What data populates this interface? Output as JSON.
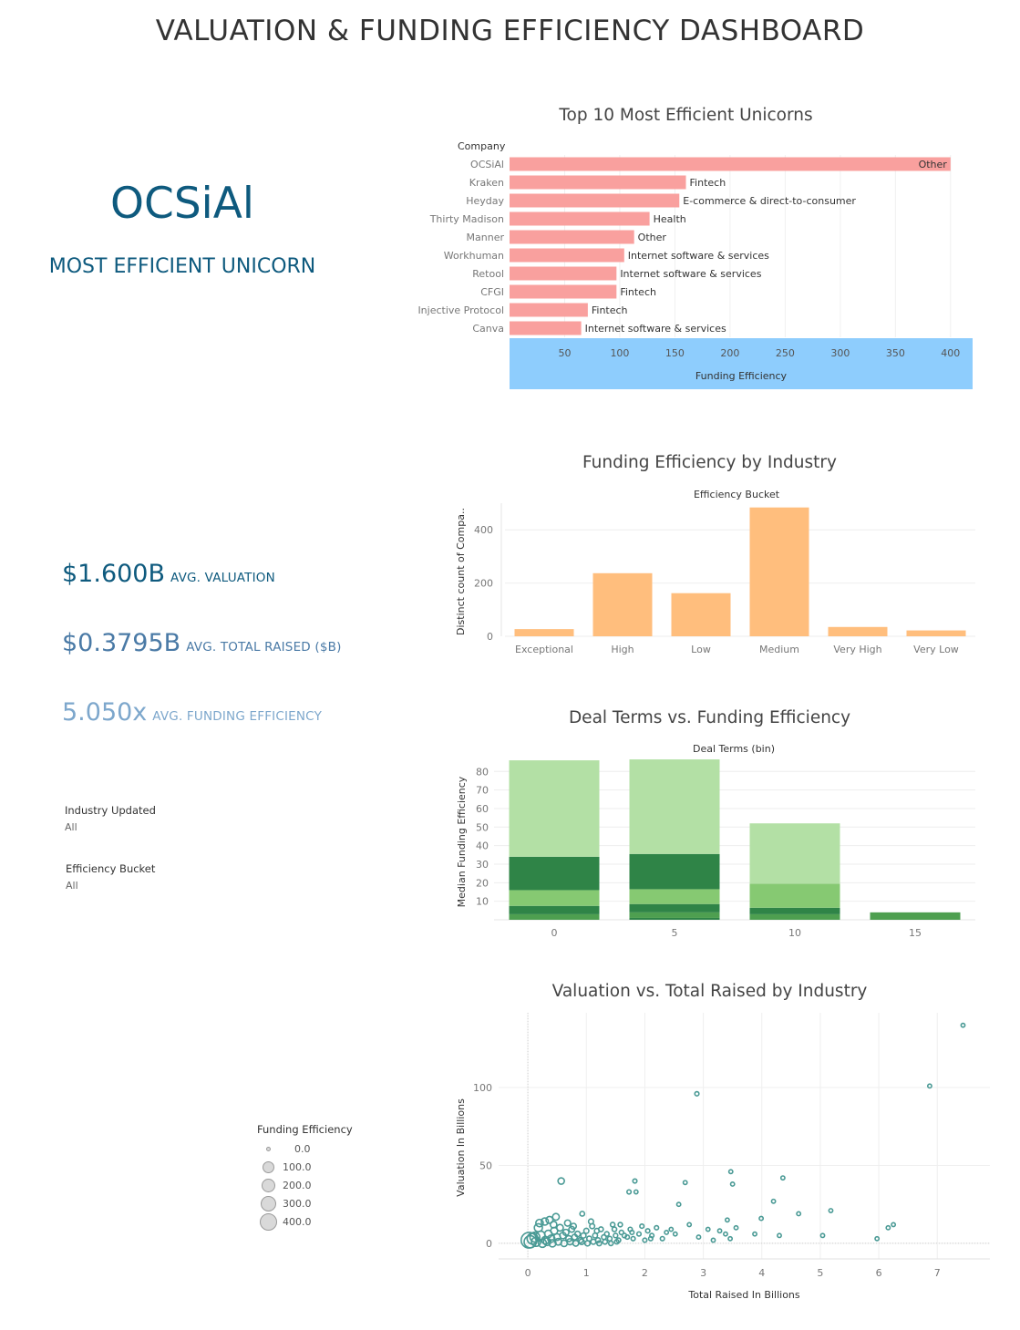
{
  "dashboard": {
    "title": "VALUATION & FUNDING EFFICIENCY DASHBOARD"
  },
  "hero": {
    "company": "OCSiAl",
    "subtitle": "MOST EFFICIENT UNICORN"
  },
  "kpis": {
    "valuation": {
      "value": "$1.600B",
      "label": "AVG. VALUATION"
    },
    "raised": {
      "value": "$0.3795B",
      "label": "AVG. TOTAL RAISED ($B)"
    },
    "efficiency": {
      "value": "5.050x",
      "label": "AVG. FUNDING EFFICIENCY"
    }
  },
  "filters": {
    "industry": {
      "title": "Industry Updated",
      "value": "All"
    },
    "bucket": {
      "title": "Efficiency Bucket",
      "value": "All"
    }
  },
  "legend": {
    "title": "Funding Efficiency",
    "items": [
      "0.0",
      "100.0",
      "200.0",
      "300.0",
      "400.0"
    ]
  },
  "colors": {
    "hero": "#0e5a7e",
    "kpi_valuation": "#0e5a7e",
    "kpi_raised": "#4a7aa6",
    "kpi_efficiency": "#7da7cc",
    "top10_bar": "#f9a09e",
    "top10_axis_band": "#8ecdfd",
    "bucket_bar": "#ffbe7d",
    "deal_light": "#b3e0a5",
    "deal_mid": "#86c972",
    "deal_dark": "#2f8447",
    "deal_med": "#4e9f50",
    "scatter": "#4a9a95"
  },
  "chart_data": [
    {
      "type": "bar",
      "orientation": "horizontal",
      "title": "Top 10 Most Efficient Unicorns",
      "row_header": "Company",
      "xlabel": "Funding Efficiency",
      "xlim": [
        0,
        420
      ],
      "xticks": [
        50,
        100,
        150,
        200,
        250,
        300,
        350,
        400
      ],
      "categories": [
        "OCSiAl",
        "Kraken",
        "Heyday",
        "Thirty Madison",
        "Manner",
        "Workhuman",
        "Retool",
        "CFGI",
        "Injective Protocol",
        "Canva"
      ],
      "values": [
        400,
        160,
        154,
        127,
        113,
        104,
        97,
        97,
        71,
        65
      ],
      "labels": [
        "Other",
        "Fintech",
        "E-commerce & direct-to-consumer",
        "Health",
        "Other",
        "Internet software & services",
        "Internet software & services",
        "Fintech",
        "Fintech",
        "Internet software & services"
      ]
    },
    {
      "type": "bar",
      "title": "Funding Efficiency by Industry",
      "column_header": "Efficiency Bucket",
      "ylabel": "Distinct count of Compa..",
      "ylim": [
        0,
        500
      ],
      "yticks": [
        0,
        200,
        400
      ],
      "categories": [
        "Exceptional",
        "High",
        "Low",
        "Medium",
        "Very High",
        "Very Low"
      ],
      "values": [
        27,
        237,
        162,
        484,
        35,
        22
      ]
    },
    {
      "type": "bar",
      "stacked": true,
      "title": "Deal Terms vs. Funding Efficiency",
      "column_header": "Deal Terms (bin)",
      "ylabel": "Median Funding Efficiency",
      "ylim": [
        0,
        88
      ],
      "yticks": [
        10,
        20,
        30,
        40,
        50,
        60,
        70,
        80
      ],
      "categories": [
        "0",
        "5",
        "10",
        "15"
      ],
      "segments": [
        [
          {
            "value": 3,
            "color": "#4e9f50"
          },
          {
            "value": 4.5,
            "color": "#2f8447"
          },
          {
            "value": 8.5,
            "color": "#86c972"
          },
          {
            "value": 18,
            "color": "#2f8447"
          },
          {
            "value": 52,
            "color": "#b3e0a5"
          }
        ],
        [
          {
            "value": 1,
            "color": "#2f8447"
          },
          {
            "value": 3,
            "color": "#4e9f50"
          },
          {
            "value": 4.5,
            "color": "#2f8447"
          },
          {
            "value": 8,
            "color": "#86c972"
          },
          {
            "value": 19,
            "color": "#2f8447"
          },
          {
            "value": 51,
            "color": "#b3e0a5"
          }
        ],
        [
          {
            "value": 3,
            "color": "#4e9f50"
          },
          {
            "value": 3.5,
            "color": "#2f8447"
          },
          {
            "value": 13,
            "color": "#86c972"
          },
          {
            "value": 32.5,
            "color": "#b3e0a5"
          }
        ],
        [
          {
            "value": 4,
            "color": "#4e9f50"
          }
        ]
      ]
    },
    {
      "type": "scatter",
      "title": "Valuation vs. Total Raised by Industry",
      "xlabel": "Total Raised In Billions",
      "ylabel": "Valuation In Billions",
      "xlim": [
        -0.5,
        7.9
      ],
      "ylim": [
        -10,
        148
      ],
      "xticks": [
        0,
        1,
        2,
        3,
        4,
        5,
        6,
        7
      ],
      "yticks": [
        0,
        50,
        100
      ],
      "size_field": "Funding Efficiency",
      "points": [
        [
          7.44,
          140,
          1
        ],
        [
          6.87,
          101,
          1
        ],
        [
          2.89,
          96,
          2
        ],
        [
          3.47,
          46,
          1
        ],
        [
          4.36,
          42,
          1
        ],
        [
          1.83,
          40,
          2
        ],
        [
          0.57,
          40,
          25
        ],
        [
          2.69,
          39,
          1
        ],
        [
          3.5,
          38,
          1
        ],
        [
          1.73,
          33,
          2
        ],
        [
          1.85,
          33,
          1
        ],
        [
          2.58,
          25,
          1
        ],
        [
          4.2,
          27,
          1
        ],
        [
          4.63,
          19,
          1
        ],
        [
          5.18,
          21,
          1
        ],
        [
          3.99,
          16,
          1
        ],
        [
          3.41,
          15,
          1
        ],
        [
          0.93,
          19,
          5
        ],
        [
          0.29,
          14,
          40
        ],
        [
          0.48,
          17,
          30
        ],
        [
          0.18,
          10,
          60
        ],
        [
          0.02,
          2,
          400
        ],
        [
          0.08,
          3,
          150
        ],
        [
          0.12,
          4,
          110
        ],
        [
          0.22,
          5,
          80
        ],
        [
          0.3,
          2,
          50
        ],
        [
          0.35,
          6,
          45
        ],
        [
          0.4,
          3,
          40
        ],
        [
          0.45,
          8,
          35
        ],
        [
          0.5,
          4,
          30
        ],
        [
          0.55,
          10,
          28
        ],
        [
          0.6,
          5,
          25
        ],
        [
          0.65,
          7,
          20
        ],
        [
          0.7,
          3,
          18
        ],
        [
          0.75,
          9,
          16
        ],
        [
          0.8,
          4,
          14
        ],
        [
          0.85,
          6,
          12
        ],
        [
          0.9,
          2,
          10
        ],
        [
          0.95,
          5,
          9
        ],
        [
          1.0,
          8,
          8
        ],
        [
          1.05,
          3,
          7
        ],
        [
          1.1,
          11,
          7
        ],
        [
          1.15,
          5,
          6
        ],
        [
          1.2,
          2,
          6
        ],
        [
          1.25,
          9,
          5
        ],
        [
          1.3,
          4,
          5
        ],
        [
          1.35,
          6,
          4
        ],
        [
          1.4,
          3,
          4
        ],
        [
          1.45,
          12,
          4
        ],
        [
          1.5,
          5,
          3
        ],
        [
          1.55,
          2,
          3
        ],
        [
          1.6,
          7,
          3
        ],
        [
          1.7,
          4,
          2
        ],
        [
          1.75,
          9,
          2
        ],
        [
          1.8,
          3,
          2
        ],
        [
          1.9,
          6,
          2
        ],
        [
          1.95,
          11,
          2
        ],
        [
          2.0,
          2,
          2
        ],
        [
          2.05,
          8,
          2
        ],
        [
          2.12,
          5,
          2
        ],
        [
          2.2,
          10,
          2
        ],
        [
          2.3,
          3,
          2
        ],
        [
          2.45,
          9,
          1
        ],
        [
          2.52,
          6,
          1
        ],
        [
          2.76,
          12,
          1
        ],
        [
          2.92,
          4,
          1
        ],
        [
          3.08,
          9,
          1
        ],
        [
          3.17,
          2,
          1
        ],
        [
          3.28,
          8,
          1
        ],
        [
          3.38,
          6,
          1
        ],
        [
          3.46,
          3,
          1
        ],
        [
          3.56,
          10,
          1
        ],
        [
          3.88,
          6,
          1
        ],
        [
          4.3,
          5,
          1
        ],
        [
          5.04,
          5,
          1
        ],
        [
          5.97,
          3,
          1
        ],
        [
          6.16,
          10,
          1
        ],
        [
          6.25,
          12,
          1
        ],
        [
          2.37,
          7,
          1
        ],
        [
          0.04,
          1,
          200
        ],
        [
          0.14,
          1,
          90
        ],
        [
          0.25,
          0,
          60
        ],
        [
          0.33,
          1,
          45
        ],
        [
          0.42,
          0,
          40
        ],
        [
          0.52,
          1,
          30
        ],
        [
          0.62,
          0,
          25
        ],
        [
          0.72,
          1,
          20
        ],
        [
          0.82,
          0,
          15
        ],
        [
          0.92,
          1,
          12
        ],
        [
          1.02,
          0,
          10
        ],
        [
          1.12,
          1,
          8
        ],
        [
          1.22,
          0,
          6
        ],
        [
          1.32,
          1,
          5
        ],
        [
          1.42,
          0,
          4
        ],
        [
          1.52,
          1,
          3
        ],
        [
          0.2,
          13,
          45
        ],
        [
          0.37,
          15,
          35
        ],
        [
          0.44,
          12,
          28
        ],
        [
          0.68,
          13,
          20
        ],
        [
          0.78,
          11,
          15
        ],
        [
          1.08,
          14,
          8
        ],
        [
          1.18,
          8,
          6
        ],
        [
          1.48,
          9,
          4
        ],
        [
          1.58,
          12,
          3
        ],
        [
          1.65,
          5,
          3
        ],
        [
          1.78,
          7,
          2
        ],
        [
          2.1,
          3,
          2
        ]
      ]
    }
  ]
}
